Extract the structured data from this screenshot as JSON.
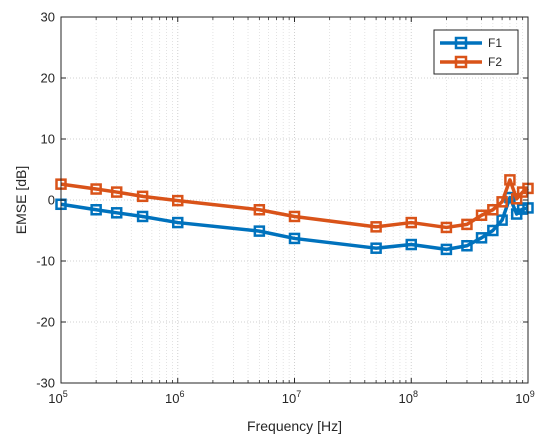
{
  "chart_data": {
    "type": "line",
    "title": "",
    "xlabel": "Frequency [Hz]",
    "ylabel": "EMSE [dB]",
    "xscale": "log",
    "xlim": [
      100000,
      1000000000
    ],
    "ylim": [
      -30,
      30
    ],
    "grid": true,
    "minor_grid": true,
    "legend_position": "top-right",
    "x_tick_labels": [
      {
        "base": "10",
        "exp": "5"
      },
      {
        "base": "10",
        "exp": "6"
      },
      {
        "base": "10",
        "exp": "7"
      },
      {
        "base": "10",
        "exp": "8"
      },
      {
        "base": "10",
        "exp": "9"
      }
    ],
    "y_tick_labels": [
      "30",
      "20",
      "10",
      "0",
      "-10",
      "-20",
      "-30"
    ],
    "y_ticks": [
      30,
      20,
      10,
      0,
      -10,
      -20,
      -30
    ],
    "series": [
      {
        "name": "F1",
        "color": "#0072BD",
        "x": [
          100000,
          200000,
          300000,
          500000,
          1000000,
          5000000,
          10000000,
          50000000,
          100000000,
          200000000,
          300000000,
          400000000,
          500000000,
          600000000,
          700000000,
          800000000,
          900000000,
          1000000000
        ],
        "y": [
          -0.7,
          -1.6,
          -2.1,
          -2.7,
          -3.7,
          -5.1,
          -6.3,
          -7.9,
          -7.3,
          -8.1,
          -7.5,
          -6.2,
          -5.0,
          -3.3,
          0.4,
          -2.3,
          -1.5,
          -1.3
        ]
      },
      {
        "name": "F2",
        "color": "#D95319",
        "x": [
          100000,
          200000,
          300000,
          500000,
          1000000,
          5000000,
          10000000,
          50000000,
          100000000,
          200000000,
          300000000,
          400000000,
          500000000,
          600000000,
          700000000,
          800000000,
          900000000,
          1000000000
        ],
        "y": [
          2.6,
          1.8,
          1.3,
          0.6,
          -0.1,
          -1.6,
          -2.7,
          -4.4,
          -3.7,
          -4.5,
          -4.0,
          -2.5,
          -1.6,
          -0.3,
          3.3,
          0.2,
          1.3,
          1.9
        ]
      }
    ]
  }
}
